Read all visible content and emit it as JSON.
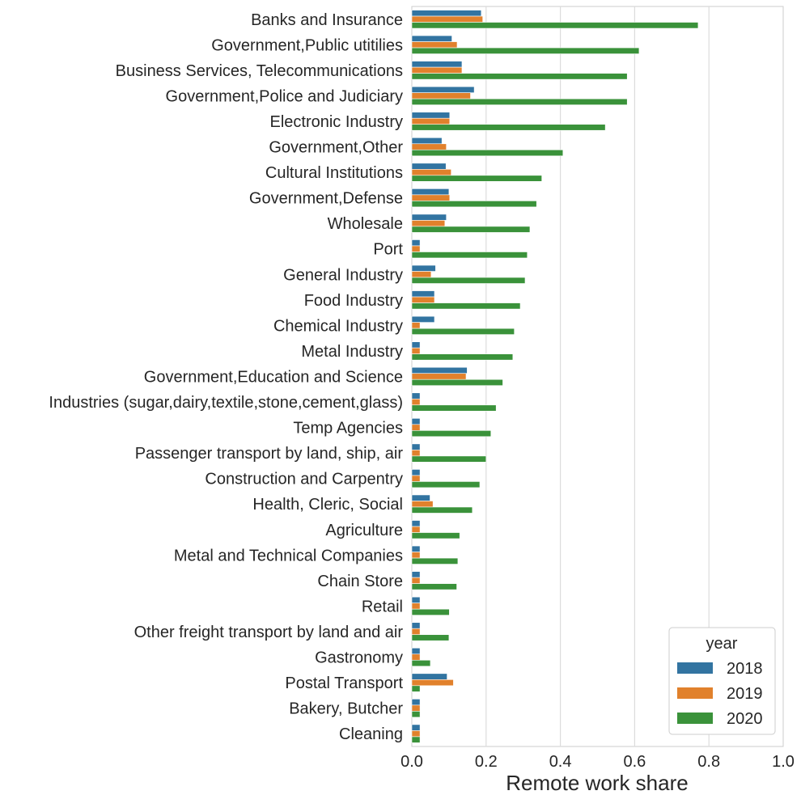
{
  "chart_data": {
    "type": "bar",
    "orientation": "horizontal",
    "xlabel": "Remote work share",
    "ylabel": "",
    "xlim": [
      0,
      1.0
    ],
    "xticks": [
      "0.0",
      "0.2",
      "0.4",
      "0.6",
      "0.8",
      "1.0"
    ],
    "grid": "vertical",
    "legend": {
      "title": "year",
      "placement": "lower-right"
    },
    "categories": [
      "Banks and Insurance",
      "Government,Public utitilies",
      "Business Services, Telecommunications",
      "Government,Police and Judiciary",
      "Electronic Industry",
      "Government,Other",
      "Cultural Institutions",
      "Government,Defense",
      "Wholesale",
      "Port",
      "General Industry",
      "Food Industry",
      "Chemical Industry",
      "Metal Industry",
      "Government,Education and Science",
      "Industries (sugar,dairy,textile,stone,cement,glass)",
      "Temp Agencies",
      "Passenger transport by land, ship, air",
      "Construction and Carpentry",
      "Health, Cleric, Social",
      "Agriculture",
      "Metal and Technical Companies",
      "Chain Store",
      "Retail",
      "Other freight transport by land and air",
      "Gastronomy",
      "Postal Transport",
      "Bakery, Butcher",
      "Cleaning"
    ],
    "series": [
      {
        "name": "2018",
        "color": "#3274a1",
        "values": [
          0.187,
          0.108,
          0.135,
          0.168,
          0.102,
          0.081,
          0.092,
          0.1,
          0.093,
          0.022,
          0.064,
          0.061,
          0.061,
          0.022,
          0.149,
          0.022,
          0.022,
          0.022,
          0.022,
          0.049,
          0.022,
          0.022,
          0.022,
          0.022,
          0.022,
          0.022,
          0.095,
          0.022,
          0.022
        ]
      },
      {
        "name": "2019",
        "color": "#e1812c",
        "values": [
          0.191,
          0.122,
          0.135,
          0.158,
          0.102,
          0.093,
          0.106,
          0.102,
          0.089,
          0.022,
          0.052,
          0.061,
          0.022,
          0.022,
          0.146,
          0.022,
          0.022,
          0.022,
          0.022,
          0.057,
          0.022,
          0.022,
          0.022,
          0.022,
          0.022,
          0.022,
          0.112,
          0.022,
          0.022
        ]
      },
      {
        "name": "2020",
        "color": "#3a923a",
        "values": [
          0.771,
          0.612,
          0.58,
          0.58,
          0.521,
          0.407,
          0.35,
          0.336,
          0.318,
          0.311,
          0.305,
          0.292,
          0.276,
          0.272,
          0.245,
          0.227,
          0.213,
          0.2,
          0.183,
          0.163,
          0.129,
          0.124,
          0.121,
          0.101,
          0.1,
          0.05,
          0.022,
          0.022,
          0.022
        ]
      }
    ]
  }
}
